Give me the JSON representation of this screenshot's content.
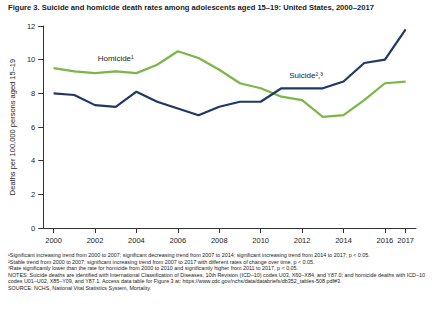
{
  "chart_data": {
    "type": "line",
    "title": "Figure 3. Suicide and homicide death rates among adolescents aged 15–19: United States, 2000–2017",
    "y_label": "Deaths per 100,000 persons aged 15–19",
    "x": [
      2000,
      2001,
      2002,
      2003,
      2004,
      2005,
      2006,
      2007,
      2008,
      2009,
      2010,
      2011,
      2012,
      2013,
      2014,
      2015,
      2016,
      2017
    ],
    "series": [
      {
        "name": "Homicide¹",
        "color": "#7ab648",
        "values": [
          9.5,
          9.3,
          9.2,
          9.3,
          9.2,
          9.7,
          10.5,
          10.1,
          9.4,
          8.6,
          8.3,
          7.8,
          7.6,
          6.6,
          6.7,
          7.6,
          8.6,
          8.7
        ]
      },
      {
        "name": "Suicide²,³",
        "color": "#1f3864",
        "values": [
          8.0,
          7.9,
          7.3,
          7.2,
          8.1,
          7.5,
          7.1,
          6.7,
          7.2,
          7.5,
          7.5,
          8.3,
          8.3,
          8.3,
          8.7,
          9.8,
          10.0,
          11.8
        ]
      }
    ],
    "xlim": [
      1999.5,
      2017.5
    ],
    "xticks": [
      2000,
      2002,
      2004,
      2006,
      2008,
      2010,
      2012,
      2014,
      2016,
      2017
    ],
    "ylim": [
      0,
      12
    ],
    "yticks": [
      0,
      2,
      4,
      6,
      8,
      10,
      12
    ],
    "grid": false,
    "notes": [
      "¹Significant increasing trend from 2000 to 2007; significant decreasing trend from 2007 to 2014; significant increasing trend from 2014 to 2017; p < 0.05.",
      "²Stable trend from 2000 to 2007; significant increasing trend from 2007 to 2017 with different rates of change over time, p < 0.05.",
      "³Rate significantly lower than the rate for homicide from 2000 to 2010 and significantly higher from 2011 to 2017, p < 0.05.",
      "NOTES: Suicide deaths are identified with International Classification of Diseases, 10th Revision (ICD–10) codes U03, X60–X84, and Y87.0; and homicide deaths with ICD–10 codes U01–U02, X85–Y09, and Y87.1. Access data table for Figure 3 at: https://www.cdc.gov/nchs/data/databriefs/db352_tables-508.pdf#3.",
      "SOURCE: NCHS, National Vital Statistics System, Mortality."
    ]
  }
}
